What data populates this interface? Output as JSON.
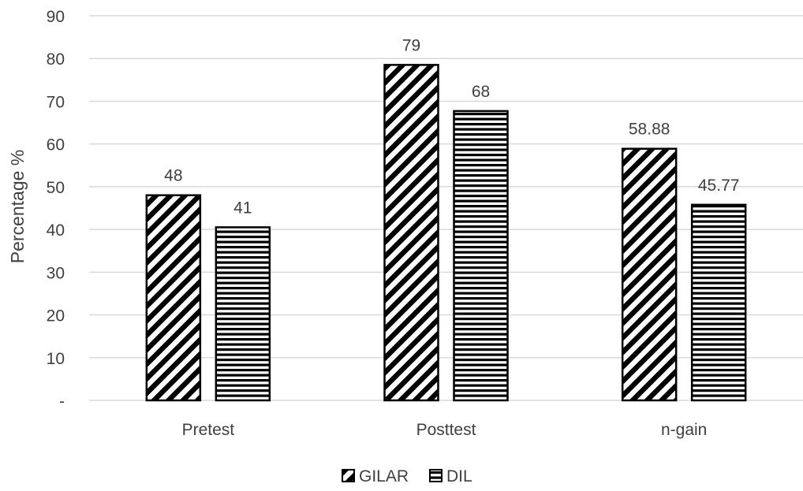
{
  "chart_data": {
    "type": "bar",
    "categories": [
      "Pretest",
      "Posttest",
      "n-gain"
    ],
    "series": [
      {
        "name": "GILAR",
        "values": [
          48,
          78.5,
          58.88
        ],
        "labels": [
          "48",
          "79",
          "58.88"
        ],
        "pattern": "diagonal"
      },
      {
        "name": "DIL",
        "values": [
          40.5,
          67.7,
          45.77
        ],
        "labels": [
          "41",
          "68",
          "45.77"
        ],
        "pattern": "horizontal"
      }
    ],
    "title": "",
    "xlabel": "",
    "ylabel": "Percentage %",
    "ylim": [
      0,
      90
    ],
    "yticks": [
      {
        "value": 0,
        "label": "-"
      },
      {
        "value": 10,
        "label": "10"
      },
      {
        "value": 20,
        "label": "20"
      },
      {
        "value": 30,
        "label": "30"
      },
      {
        "value": 40,
        "label": "40"
      },
      {
        "value": 50,
        "label": "50"
      },
      {
        "value": 60,
        "label": "60"
      },
      {
        "value": 70,
        "label": "70"
      },
      {
        "value": 80,
        "label": "80"
      },
      {
        "value": 90,
        "label": "90"
      }
    ],
    "grid": true,
    "legend_position": "bottom-center",
    "colors": {
      "bar_fill": "#ffffff",
      "bar_stroke": "#000000",
      "gridline": "#d9d9d9",
      "text": "#404040"
    }
  }
}
